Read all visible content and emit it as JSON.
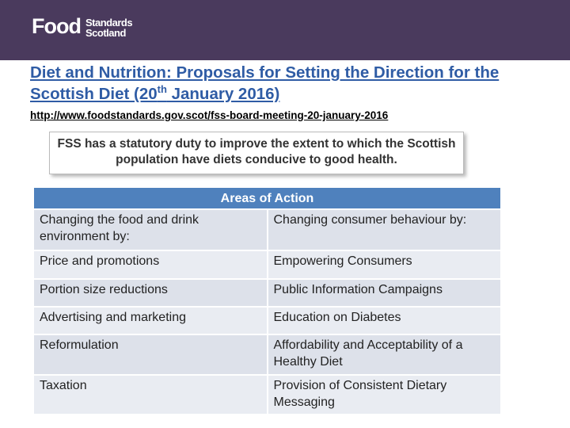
{
  "header": {
    "logo": {
      "brand": "Food",
      "line1": "Standards",
      "line2": "Scotland"
    }
  },
  "title": {
    "text": "Diet and Nutrition: Proposals for Setting the Direction for the Scottish Diet (20",
    "superscript": "th",
    "text_end": " January 2016)"
  },
  "link": "http://www.foodstandards.gov.scot/fss-board-meeting-20-january-2016",
  "callout": "FSS has a statutory duty to improve the extent to which the Scottish population have diets conducive to good health.",
  "table": {
    "title": "Areas of Action",
    "rows": [
      [
        "Changing the food and drink environment by:",
        "Changing consumer behaviour by:"
      ],
      [
        "Price and promotions",
        "Empowering Consumers"
      ],
      [
        "Portion size reductions",
        "Public Information Campaigns"
      ],
      [
        "Advertising and marketing",
        "Education on Diabetes"
      ],
      [
        "Reformulation",
        "Affordability and Acceptability of a Healthy Diet"
      ],
      [
        "Taxation",
        "Provision of Consistent Dietary Messaging"
      ]
    ]
  }
}
